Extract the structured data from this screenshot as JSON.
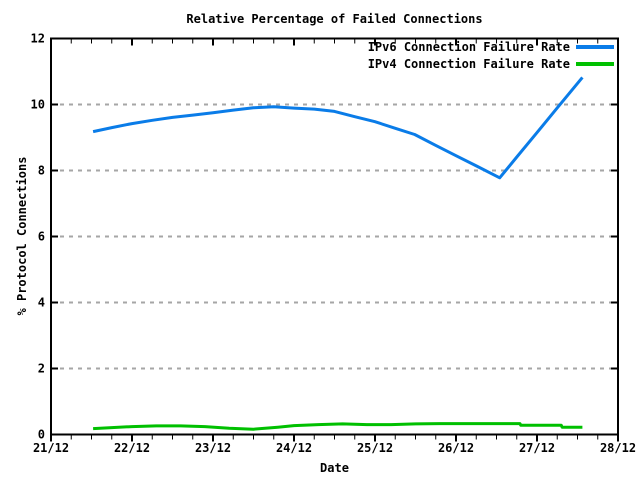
{
  "chart_data": {
    "type": "line",
    "title": "Relative Percentage of Failed Connections",
    "xlabel": "Date",
    "ylabel": "% Protocol Connections",
    "x_domain": [
      0,
      7
    ],
    "ylim": [
      0,
      12
    ],
    "x_tick_positions": [
      0,
      1,
      2,
      3,
      4,
      5,
      6,
      7
    ],
    "x_tick_labels": [
      "21/12",
      "22/12",
      "23/12",
      "24/12",
      "25/12",
      "26/12",
      "27/12",
      "28/12"
    ],
    "x_minor_step": 0.25,
    "y_ticks": [
      0,
      2,
      4,
      6,
      8,
      10,
      12
    ],
    "grid": {
      "horizontal_dashed": true,
      "color": "#a6a6a6"
    },
    "legend_position": "top-right-inside",
    "axis_color": "#000000",
    "background_color": "#ffffff",
    "series": [
      {
        "name": "IPv6 Connection Failure Rate",
        "color": "#0a7ce8",
        "x": [
          0.52,
          0.75,
          1.0,
          1.25,
          1.5,
          1.75,
          2.0,
          2.25,
          2.5,
          2.75,
          3.0,
          3.25,
          3.5,
          3.75,
          4.0,
          4.25,
          4.49,
          4.75,
          5.0,
          5.25,
          5.54,
          5.75,
          6.0,
          6.25,
          6.56
        ],
        "y": [
          9.18,
          9.3,
          9.42,
          9.52,
          9.61,
          9.68,
          9.75,
          9.83,
          9.9,
          9.93,
          9.89,
          9.86,
          9.79,
          9.63,
          9.48,
          9.28,
          9.09,
          8.76,
          8.45,
          8.14,
          7.78,
          8.41,
          9.15,
          9.9,
          10.82
        ]
      },
      {
        "name": "IPv4 Connection Failure Rate",
        "color": "#00c000",
        "x": [
          0.52,
          0.75,
          1.0,
          1.3,
          1.6,
          1.9,
          2.2,
          2.5,
          2.8,
          3.0,
          3.3,
          3.6,
          3.9,
          4.2,
          4.5,
          4.8,
          5.1,
          5.4,
          5.79,
          5.8,
          6.3,
          6.31,
          6.56
        ],
        "y": [
          0.18,
          0.21,
          0.24,
          0.26,
          0.26,
          0.24,
          0.19,
          0.16,
          0.22,
          0.27,
          0.3,
          0.32,
          0.3,
          0.3,
          0.32,
          0.33,
          0.33,
          0.33,
          0.33,
          0.28,
          0.28,
          0.22,
          0.22
        ]
      }
    ]
  }
}
